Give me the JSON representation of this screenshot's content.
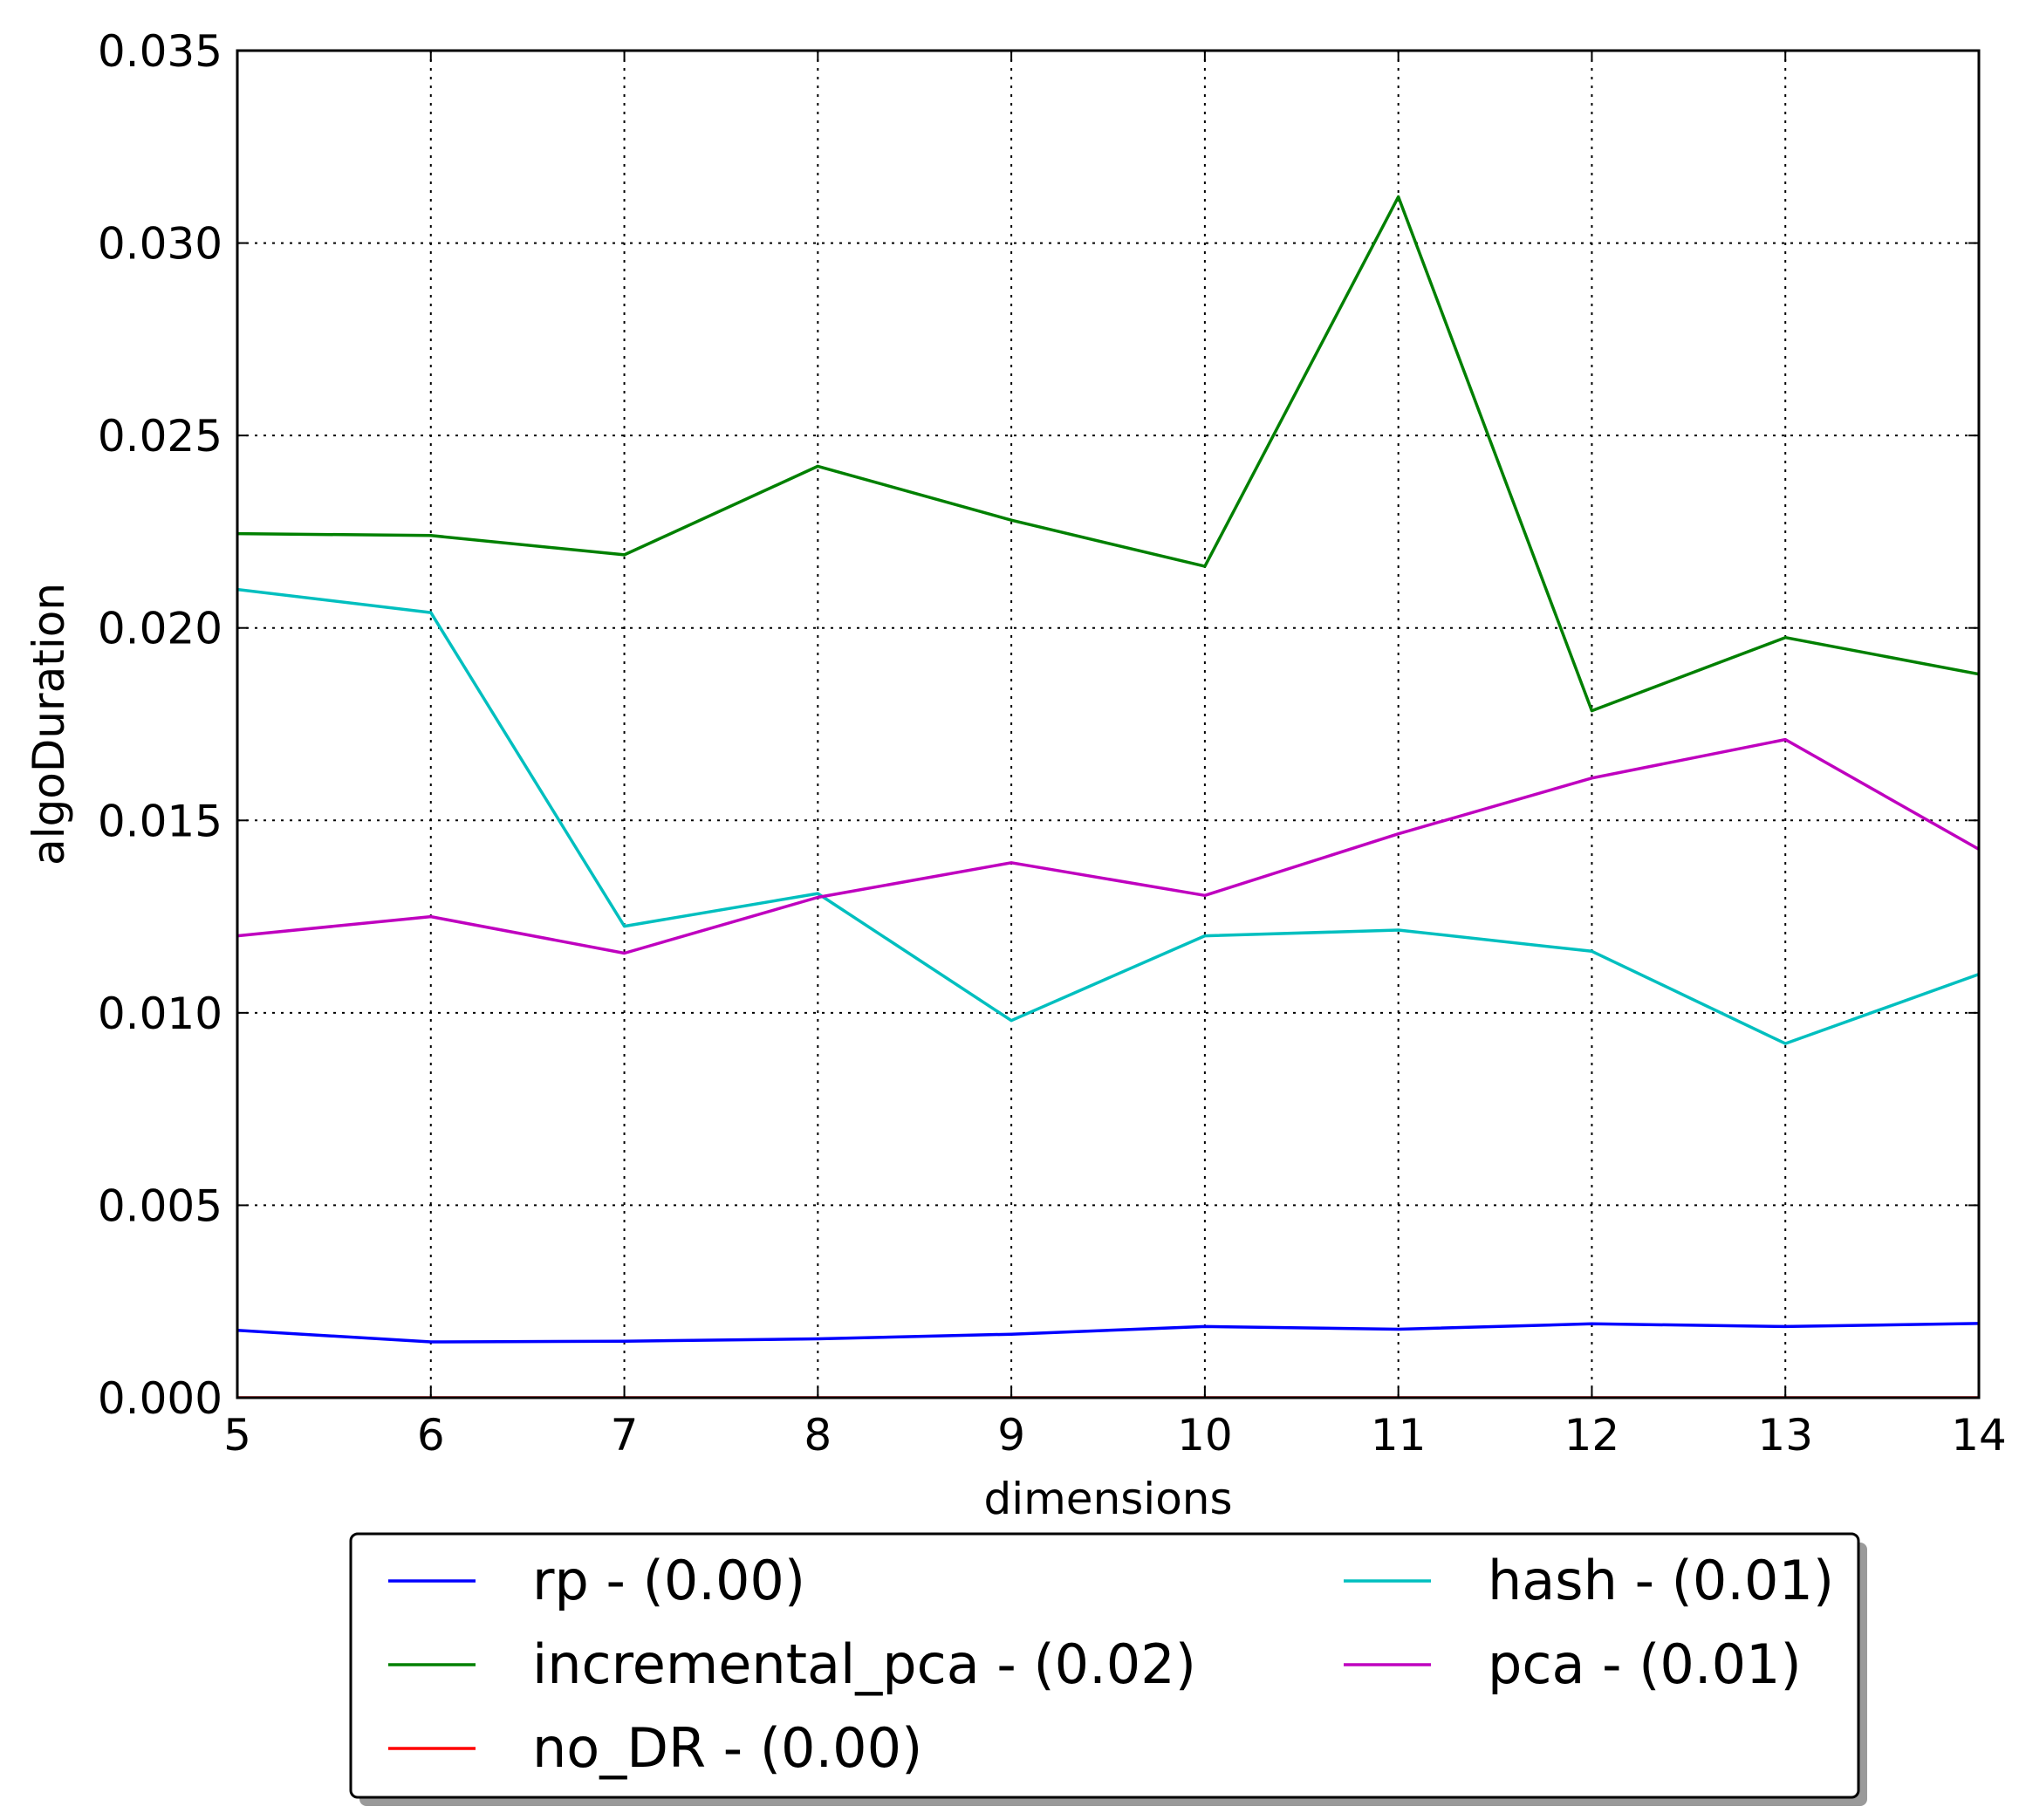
{
  "chart_data": {
    "type": "line",
    "xlabel": "dimensions",
    "ylabel": "algoDuration",
    "xlim": [
      5,
      14
    ],
    "ylim": [
      0.0,
      0.035
    ],
    "grid": true,
    "legend_position": "below-center",
    "x": [
      5,
      6,
      7,
      8,
      9,
      10,
      11,
      12,
      13,
      14
    ],
    "x_ticks": [
      "5",
      "6",
      "7",
      "8",
      "9",
      "10",
      "11",
      "12",
      "13",
      "14"
    ],
    "y_ticks": [
      "0.000",
      "0.005",
      "0.010",
      "0.015",
      "0.020",
      "0.025",
      "0.030",
      "0.035"
    ],
    "series": [
      {
        "name": "rp - (0.00)",
        "color": "#0000ff",
        "values": [
          0.00175,
          0.00145,
          0.00147,
          0.00153,
          0.00165,
          0.00185,
          0.00178,
          0.00192,
          0.00185,
          0.00193
        ]
      },
      {
        "name": "incremental_pca - (0.02)",
        "color": "#008000",
        "values": [
          0.02245,
          0.0224,
          0.0219,
          0.0242,
          0.0228,
          0.0216,
          0.0312,
          0.01785,
          0.01975,
          0.0188
        ]
      },
      {
        "name": "no_DR - (0.00)",
        "color": "#ff0000",
        "values": [
          0.0,
          0.0,
          0.0,
          0.0,
          0.0,
          0.0,
          0.0,
          0.0,
          0.0,
          0.0
        ]
      },
      {
        "name": "hash - (0.01)",
        "color": "#00bfbf",
        "values": [
          0.021,
          0.0204,
          0.01225,
          0.0131,
          0.0098,
          0.012,
          0.01215,
          0.0116,
          0.0092,
          0.011
        ]
      },
      {
        "name": "pca - (0.01)",
        "color": "#bf00bf",
        "values": [
          0.012,
          0.0125,
          0.01155,
          0.013,
          0.0139,
          0.01305,
          0.01465,
          0.0161,
          0.0171,
          0.01425
        ]
      }
    ]
  }
}
